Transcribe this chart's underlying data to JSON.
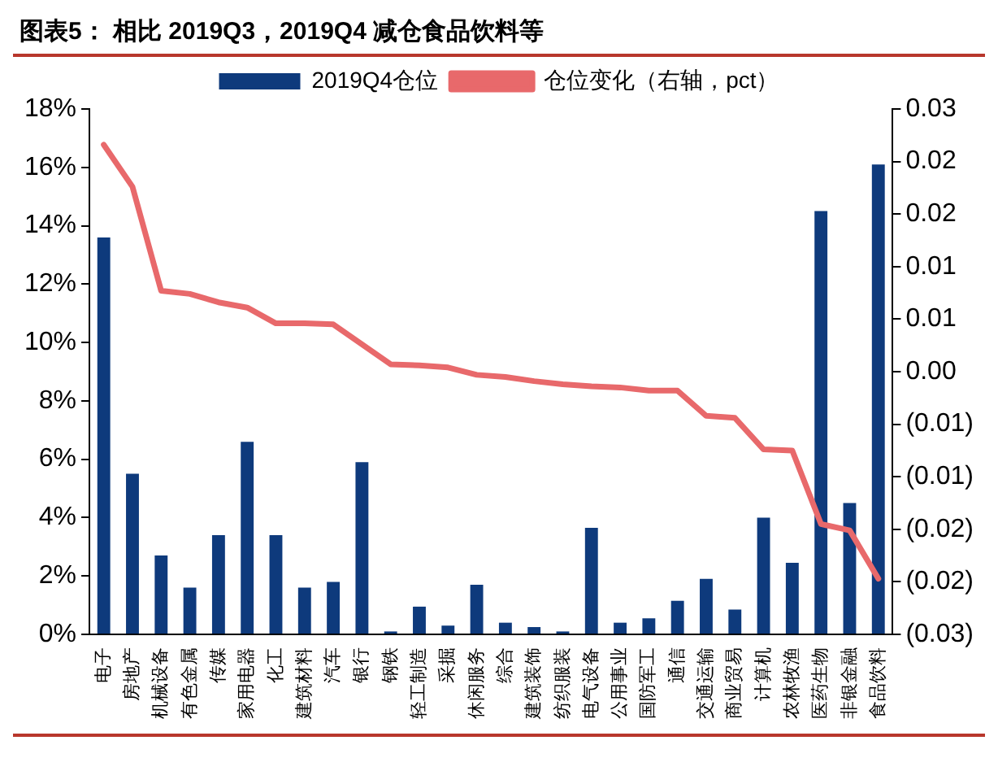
{
  "chart_data": {
    "type": "bar",
    "title": "图表5：  相比 2019Q3，2019Q4 减仓食品饮料等",
    "categories": [
      "电子",
      "房地产",
      "机械设备",
      "有色金属",
      "传媒",
      "家用电器",
      "化工",
      "建筑材料",
      "汽车",
      "银行",
      "钢铁",
      "轻工制造",
      "采掘",
      "休闲服务",
      "综合",
      "建筑装饰",
      "纺织服装",
      "电气设备",
      "公用事业",
      "国防军工",
      "通信",
      "交通运输",
      "商业贸易",
      "计算机",
      "农林牧渔",
      "医药生物",
      "非银金融",
      "食品饮料"
    ],
    "series": [
      {
        "name": "2019Q4仓位",
        "color": "#0e3a7c",
        "values": [
          13.6,
          5.5,
          2.7,
          1.6,
          3.4,
          6.6,
          3.4,
          1.6,
          1.8,
          5.9,
          0.1,
          0.95,
          0.3,
          1.7,
          0.4,
          0.25,
          0.1,
          3.65,
          0.4,
          0.55,
          1.15,
          1.9,
          0.85,
          4.0,
          2.45,
          14.5,
          4.5,
          16.1
        ]
      },
      {
        "name": "仓位变化（右轴，pct）",
        "type": "line",
        "axis": "y2",
        "color": "#e8696b",
        "values": [
          0.0216,
          0.0176,
          0.0077,
          0.0074,
          0.0066,
          0.0061,
          0.0046,
          0.0046,
          0.0045,
          0.0026,
          0.0007,
          0.0006,
          0.0004,
          -0.0003,
          -0.0005,
          -0.0009,
          -0.0012,
          -0.0014,
          -0.0015,
          -0.0018,
          -0.0018,
          -0.0042,
          -0.0044,
          -0.0074,
          -0.0075,
          -0.0145,
          -0.0151,
          -0.0197
        ]
      }
    ],
    "ylim": [
      0,
      18
    ],
    "yticks": [
      {
        "value": 0,
        "label": "0%"
      },
      {
        "value": 2,
        "label": "2%"
      },
      {
        "value": 4,
        "label": "4%"
      },
      {
        "value": 6,
        "label": "6%"
      },
      {
        "value": 8,
        "label": "8%"
      },
      {
        "value": 10,
        "label": "10%"
      },
      {
        "value": 12,
        "label": "12%"
      },
      {
        "value": 14,
        "label": "14%"
      },
      {
        "value": 16,
        "label": "16%"
      },
      {
        "value": 18,
        "label": "18%"
      }
    ],
    "y2lim": [
      -0.025,
      0.025
    ],
    "y2ticks": [
      {
        "value": -0.025,
        "label": "(0.03)"
      },
      {
        "value": -0.02,
        "label": "(0.02)"
      },
      {
        "value": -0.015,
        "label": "(0.02)"
      },
      {
        "value": -0.01,
        "label": "(0.01)"
      },
      {
        "value": -0.005,
        "label": "(0.01)"
      },
      {
        "value": 0,
        "label": "0.00"
      },
      {
        "value": 0.005,
        "label": "0.01"
      },
      {
        "value": 0.01,
        "label": "0.01"
      },
      {
        "value": 0.015,
        "label": "0.02"
      },
      {
        "value": 0.02,
        "label": "0.02"
      },
      {
        "value": 0.025,
        "label": "0.03"
      }
    ],
    "legend": "top",
    "grid": false,
    "marker": "none",
    "line_style": "solid"
  }
}
